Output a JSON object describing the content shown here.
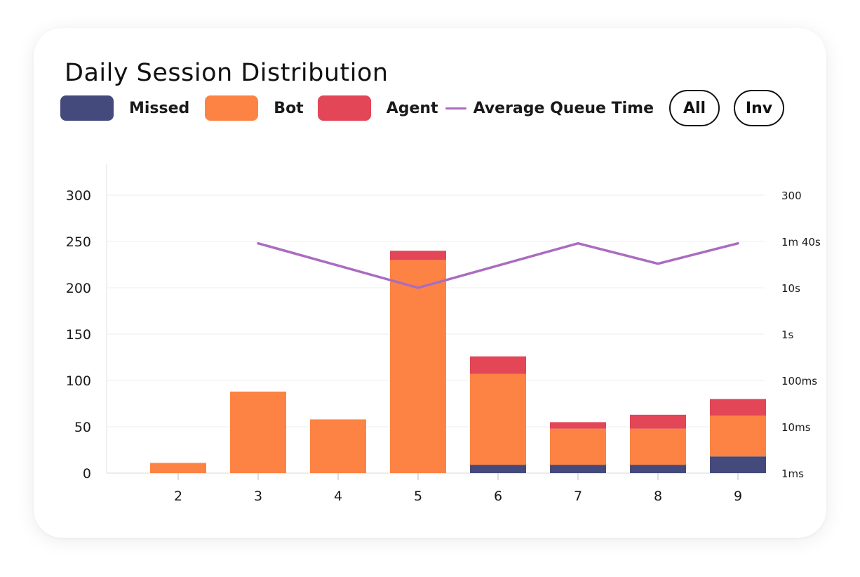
{
  "title": "Daily Session Distribution",
  "legend": {
    "items": [
      {
        "label": "Missed",
        "color": "#454a7c"
      },
      {
        "label": "Bot",
        "color": "#fd8344"
      },
      {
        "label": "Agent",
        "color": "#e24657"
      }
    ],
    "line": {
      "label": "Average Queue Time",
      "color": "#aa6cbf"
    }
  },
  "buttons": {
    "all": "All",
    "inv": "Inv"
  },
  "chart_data": {
    "type": "bar",
    "stacked": true,
    "categories": [
      "2",
      "3",
      "4",
      "5",
      "6",
      "7",
      "8",
      "9"
    ],
    "series": [
      {
        "name": "Missed",
        "color": "#454a7c",
        "values": [
          0,
          0,
          0,
          0,
          9,
          9,
          9,
          18
        ]
      },
      {
        "name": "Bot",
        "color": "#fd8344",
        "values": [
          11,
          88,
          58,
          230,
          98,
          39,
          39,
          44
        ]
      },
      {
        "name": "Agent",
        "color": "#e24657",
        "values": [
          0,
          0,
          0,
          10,
          19,
          7,
          15,
          18
        ]
      }
    ],
    "ylim": [
      0,
      300
    ],
    "yticks": [
      0,
      50,
      100,
      150,
      200,
      250,
      300
    ],
    "y2_ticks": [
      "1ms",
      "10ms",
      "100ms",
      "1s",
      "10s",
      "1m 40s",
      "300"
    ],
    "line_series": {
      "name": "Average Queue Time",
      "color": "#aa6cbf",
      "categories": [
        "3",
        "4",
        "5",
        "6",
        "7",
        "8",
        "9"
      ],
      "values": [
        248,
        224,
        200,
        224,
        248,
        226,
        248
      ]
    },
    "grid": true,
    "legend_position": "top"
  }
}
